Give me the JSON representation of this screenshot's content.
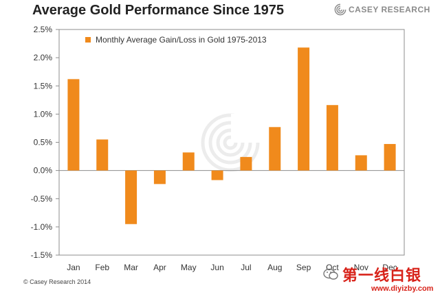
{
  "header": {
    "title": "Average Gold Performance Since 1975",
    "logo_text": "CASEY RESEARCH",
    "logo_icon": "spiral-logo-icon"
  },
  "footer": {
    "copyright": "© Casey Research 2014",
    "watermark_text": "第一线白银",
    "watermark_url": "www.diyizby.com",
    "watermark_icon": "wechat-icon"
  },
  "colors": {
    "bar": "#f08a1c",
    "axis": "#8c8c8c",
    "watermark": "#d8231a"
  },
  "chart_data": {
    "type": "bar",
    "title": "Average Gold Performance Since 1975",
    "series": [
      {
        "name": "Monthly Average Gain/Loss in Gold 1975-2013",
        "values": [
          1.62,
          0.55,
          -0.95,
          -0.24,
          0.32,
          -0.17,
          0.24,
          0.77,
          2.18,
          1.16,
          0.27,
          0.47
        ]
      }
    ],
    "categories": [
      "Jan",
      "Feb",
      "Mar",
      "Apr",
      "May",
      "Jun",
      "Jul",
      "Aug",
      "Sep",
      "Oct",
      "Nov",
      "Dec"
    ],
    "y_ticks": [
      "2.5%",
      "2.0%",
      "1.5%",
      "1.0%",
      "0.5%",
      "0.0%",
      "-0.5%",
      "-1.0%",
      "-1.5%"
    ],
    "ylim": [
      -1.5,
      2.5
    ],
    "xlabel": "",
    "ylabel": "",
    "grid": false,
    "legend_position": "top-left"
  }
}
